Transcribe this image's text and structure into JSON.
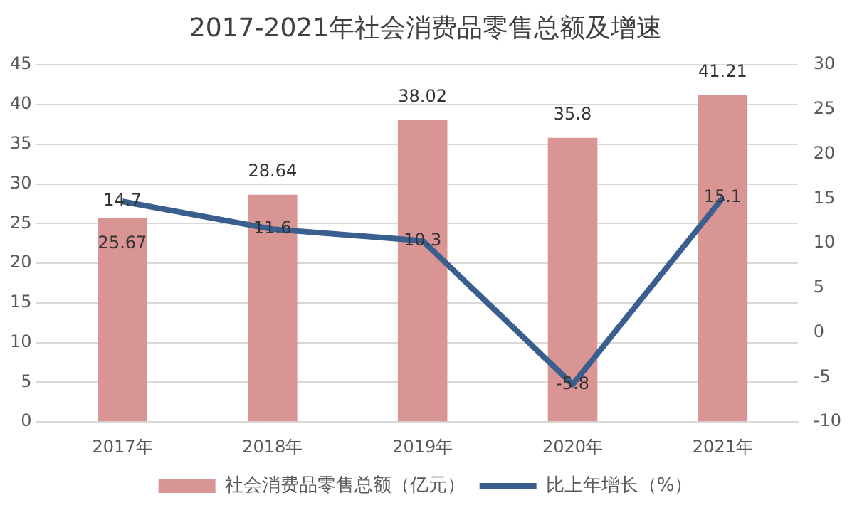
{
  "chart_data": {
    "type": "bar",
    "title": "2017-2021年社会消费品零售总额及增速",
    "categories": [
      "2017年",
      "2018年",
      "2019年",
      "2020年",
      "2021年"
    ],
    "series": [
      {
        "name": "社会消费品零售总额（亿元）",
        "color": "#d99594",
        "values": [
          25.67,
          28.64,
          38.02,
          35.8,
          41.21
        ]
      },
      {
        "name": "比上年增长（%）",
        "type": "line",
        "axis": "y2",
        "color": "#3a5f8f",
        "values": [
          14.7,
          11.6,
          10.3,
          -5.8,
          15.1
        ]
      }
    ],
    "ylim": [
      0,
      45
    ],
    "yticks": [
      0,
      5,
      10,
      15,
      20,
      25,
      30,
      35,
      40,
      45
    ],
    "y2lim": [
      -10,
      30
    ],
    "y2ticks": [
      -10,
      -5,
      0,
      5,
      10,
      15,
      20,
      25,
      30
    ],
    "data_labels": true,
    "grid": "y",
    "legend": "bottom",
    "marker": "none"
  }
}
